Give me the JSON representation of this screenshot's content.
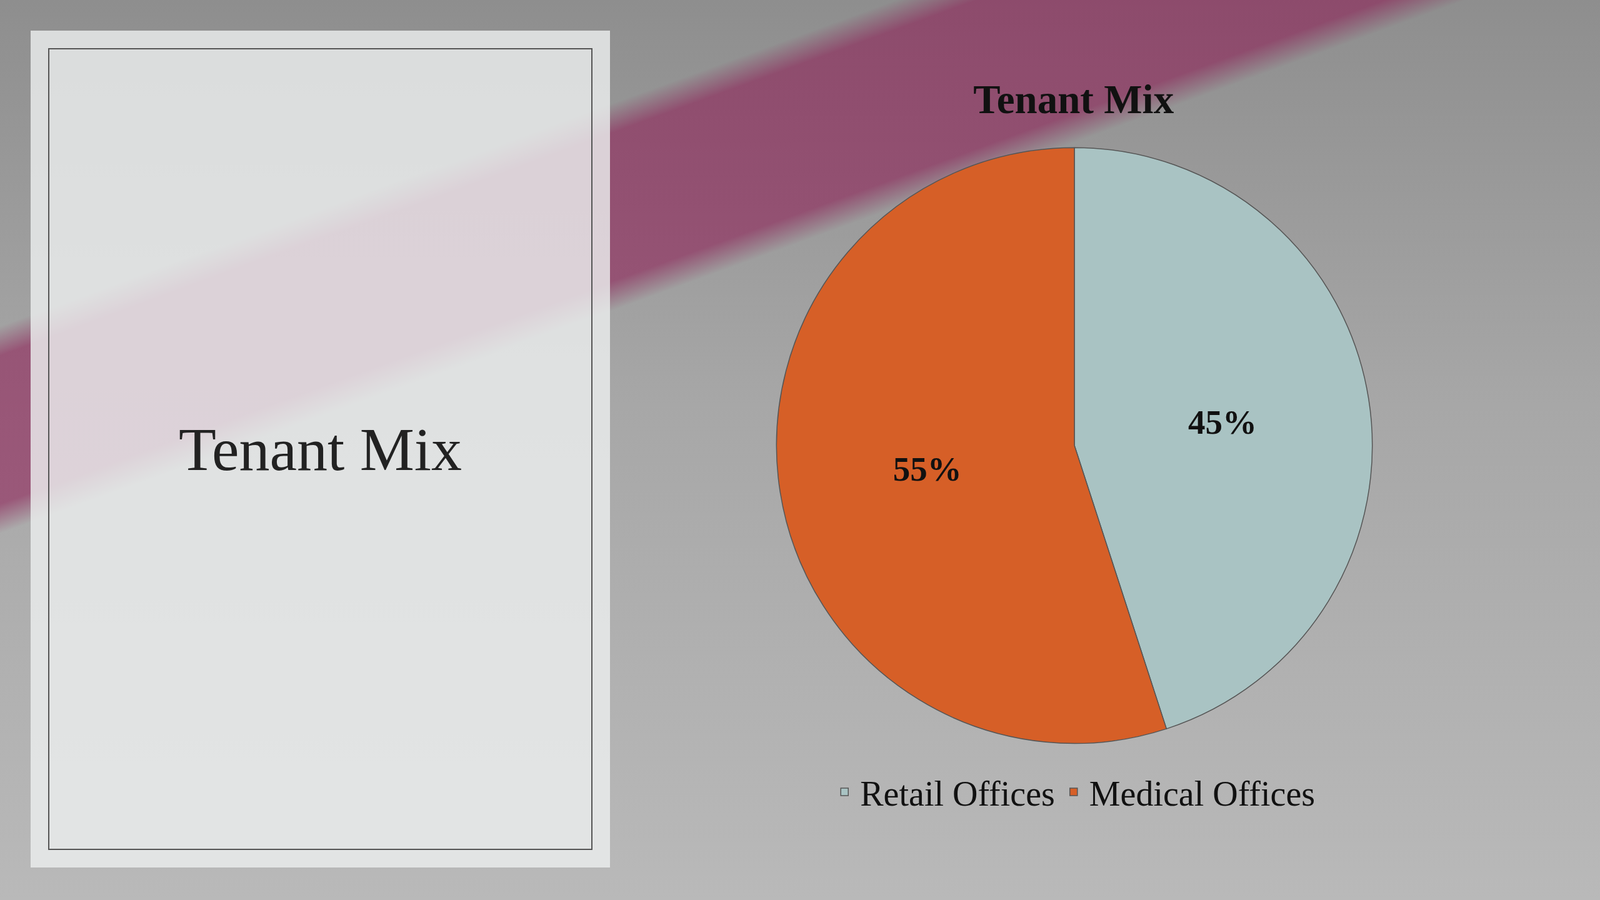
{
  "heading": "Tenant Mix",
  "chart_data": {
    "type": "pie",
    "title": "Tenant Mix",
    "categories": [
      "Retail Offices",
      "Medical Offices"
    ],
    "values": [
      45,
      55
    ],
    "value_labels": [
      "45%",
      "55%"
    ],
    "colors": [
      "#a9c3c3",
      "#d65f27"
    ],
    "data_labels": true,
    "legend": "bottom"
  }
}
